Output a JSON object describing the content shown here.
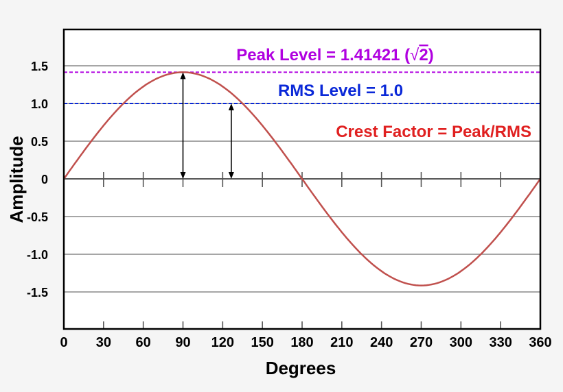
{
  "chart_data": {
    "type": "line",
    "title": "",
    "xlabel": "Degrees",
    "ylabel": "Amplitude",
    "xlim": [
      0,
      360
    ],
    "ylim": [
      -2,
      2
    ],
    "x_ticks": [
      0,
      30,
      60,
      90,
      120,
      150,
      180,
      210,
      240,
      270,
      300,
      330,
      360
    ],
    "x_tick_labels": [
      "0",
      "30",
      "60",
      "90",
      "120",
      "150",
      "180",
      "210",
      "240",
      "270",
      "300",
      "330",
      "360"
    ],
    "y_ticks": [
      1.5,
      1.0,
      0.5,
      0,
      -0.5,
      -1.0,
      -1.5
    ],
    "y_tick_labels": [
      "1.5",
      "1.0",
      "0.5",
      "0",
      "-0.5",
      "-1.0",
      "-1.5"
    ],
    "grid": "horizontal",
    "series": [
      {
        "function": "1.41421*sin(x)",
        "x_range": [
          0,
          360
        ],
        "color": "#c0504d"
      }
    ],
    "reference_lines": [
      {
        "y": 1.41421,
        "style": "dashed",
        "color": "#b000e0",
        "label": "Peak Level = 1.41421 (",
        "label_sqrt": "2",
        "label_close": ")"
      },
      {
        "y": 1.0,
        "style": "dashed",
        "color": "#0a28d8",
        "label": "RMS Level = 1.0"
      }
    ],
    "arrows": [
      {
        "x": 90,
        "from": 0,
        "to": 1.41421
      },
      {
        "x": 126.5,
        "from": 0,
        "to": 1.0
      }
    ],
    "annotations": [
      {
        "text": "Crest Factor = Peak/RMS",
        "color": "#e02020"
      }
    ]
  }
}
